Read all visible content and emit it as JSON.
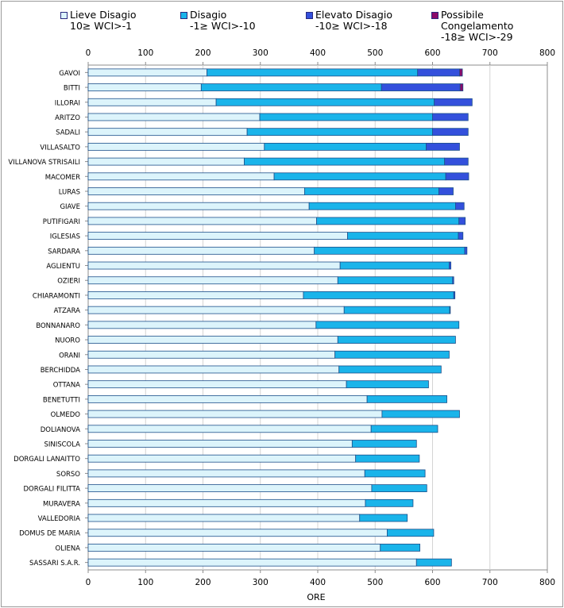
{
  "chart_data": {
    "type": "bar",
    "orientation": "horizontal",
    "stacked": true,
    "title": "",
    "xlabel": "ORE",
    "ylabel": "",
    "xlim": [
      0,
      800
    ],
    "xticks": [
      "0",
      "100",
      "200",
      "300",
      "400",
      "500",
      "600",
      "700",
      "800"
    ],
    "grid": "vertical",
    "legend_position": "top",
    "categories": [
      "GAVOI",
      "BITTI",
      "ILLORAI",
      "ARITZO",
      "SADALI",
      "VILLASALTO",
      "VILLANOVA STRISAILI",
      "MACOMER",
      "LURAS",
      "GIAVE",
      "PUTIFIGARI",
      "IGLESIAS",
      "SARDARA",
      "AGLIENTU",
      "OZIERI",
      "CHIARAMONTI",
      "ATZARA",
      "BONNANARO",
      "NUORO",
      "ORANI",
      "BERCHIDDA",
      "OTTANA",
      "BENETUTTI",
      "OLMEDO",
      "DOLIANOVA",
      "SINISCOLA",
      "DORGALI LANAITTO",
      "SORSO",
      "DORGALI FILITTA",
      "MURAVERA",
      "VALLEDORIA",
      "DOMUS DE MARIA",
      "OLIENA",
      "SASSARI S.A.R."
    ],
    "series": [
      {
        "name": "Lieve Disagio",
        "range": "10≥ WCI>-1",
        "color": "#dcf4fb",
        "values": [
          207,
          197,
          223,
          299,
          277,
          307,
          272,
          324,
          377,
          385,
          398,
          452,
          394,
          439,
          435,
          375,
          446,
          397,
          435,
          430,
          437,
          450,
          486,
          512,
          493,
          460,
          466,
          482,
          494,
          483,
          473,
          521,
          509,
          572
        ]
      },
      {
        "name": "Disagio",
        "range": "-1≥ WCI>-10",
        "color": "#1ab4ea",
        "values": [
          367,
          314,
          380,
          301,
          323,
          282,
          349,
          299,
          234,
          255,
          248,
          193,
          262,
          190,
          200,
          262,
          184,
          249,
          205,
          199,
          178,
          143,
          139,
          135,
          116,
          112,
          111,
          105,
          96,
          83,
          83,
          81,
          69,
          61
        ]
      },
      {
        "name": "Elevato Disagio",
        "range": "-10≥ WCI>-18",
        "color": "#3350dc",
        "values": [
          73,
          137,
          66,
          62,
          62,
          58,
          41,
          40,
          25,
          15,
          11,
          8,
          4,
          3,
          2,
          2,
          1,
          0,
          0,
          0,
          0,
          0,
          0,
          0,
          0,
          0,
          0,
          0,
          0,
          0,
          0,
          0,
          0,
          0
        ]
      },
      {
        "name": "Possibile Congelamento",
        "range": "-18≥ WCI>-29",
        "color": "#8a0a6a",
        "values": [
          5,
          5,
          0,
          0,
          0,
          0,
          0,
          0,
          0,
          0,
          0,
          0,
          0,
          0,
          0,
          0,
          0,
          0,
          0,
          0,
          0,
          0,
          0,
          0,
          0,
          0,
          0,
          0,
          0,
          0,
          0,
          0,
          0,
          0
        ]
      }
    ]
  },
  "legend": [
    {
      "label": "Lieve Disagio",
      "range": "10≥ WCI>-1",
      "color": "#dcf4fb"
    },
    {
      "label": "Disagio",
      "range": "-1≥ WCI>-10",
      "color": "#1ab4ea"
    },
    {
      "label": "Elevato Disagio",
      "range": "-10≥ WCI>-18",
      "color": "#3350dc"
    },
    {
      "label": "Possibile",
      "label2": "Congelamento",
      "range": "-18≥ WCI>-29",
      "color": "#8a0a6a"
    }
  ]
}
